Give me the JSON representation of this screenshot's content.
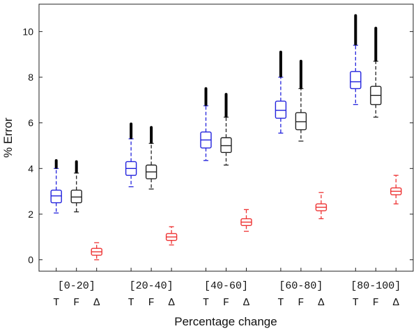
{
  "chart_data": {
    "type": "box",
    "xlabel": "Percentage change",
    "ylabel": "% Error",
    "ylim": [
      -0.5,
      11.2
    ],
    "yticks": [
      0,
      2,
      4,
      6,
      8,
      10
    ],
    "grid": false,
    "categories": [
      "[0-20]",
      "[20-40]",
      "[40-60]",
      "[60-80]",
      "[80-100]"
    ],
    "sub_labels": [
      "T",
      "F",
      "Δ"
    ],
    "series": [
      {
        "name": "T",
        "color": "#2222dd",
        "boxes": [
          {
            "whisker_low": 2.05,
            "q1": 2.5,
            "median": 2.8,
            "q3": 3.05,
            "whisker_high": 4.0,
            "outliers_high": [
              4.05,
              4.35
            ]
          },
          {
            "whisker_low": 3.2,
            "q1": 3.7,
            "median": 4.0,
            "q3": 4.3,
            "whisker_high": 5.3,
            "outliers_high": [
              5.35,
              5.95
            ]
          },
          {
            "whisker_low": 4.35,
            "q1": 4.9,
            "median": 5.25,
            "q3": 5.6,
            "whisker_high": 6.75,
            "outliers_high": [
              6.8,
              7.5
            ]
          },
          {
            "whisker_low": 5.55,
            "q1": 6.2,
            "median": 6.55,
            "q3": 6.95,
            "whisker_high": 8.0,
            "outliers_high": [
              8.05,
              9.1
            ]
          },
          {
            "whisker_low": 6.8,
            "q1": 7.5,
            "median": 7.8,
            "q3": 8.25,
            "whisker_high": 9.4,
            "outliers_high": [
              9.45,
              10.7
            ]
          }
        ]
      },
      {
        "name": "F",
        "color": "#222222",
        "boxes": [
          {
            "whisker_low": 2.1,
            "q1": 2.5,
            "median": 2.75,
            "q3": 3.05,
            "whisker_high": 3.8,
            "outliers_high": [
              3.85,
              4.3
            ]
          },
          {
            "whisker_low": 3.1,
            "q1": 3.55,
            "median": 3.85,
            "q3": 4.15,
            "whisker_high": 5.1,
            "outliers_high": [
              5.15,
              5.8
            ]
          },
          {
            "whisker_low": 4.15,
            "q1": 4.7,
            "median": 5.0,
            "q3": 5.35,
            "whisker_high": 6.25,
            "outliers_high": [
              6.3,
              7.25
            ]
          },
          {
            "whisker_low": 5.2,
            "q1": 5.7,
            "median": 6.05,
            "q3": 6.45,
            "whisker_high": 7.5,
            "outliers_high": [
              7.55,
              8.7
            ]
          },
          {
            "whisker_low": 6.25,
            "q1": 6.8,
            "median": 7.2,
            "q3": 7.6,
            "whisker_high": 8.7,
            "outliers_high": [
              8.75,
              10.15
            ]
          }
        ]
      },
      {
        "name": "Δ",
        "color": "#ee3333",
        "boxes": [
          {
            "whisker_low": 0.0,
            "q1": 0.2,
            "median": 0.35,
            "q3": 0.5,
            "whisker_high": 0.75,
            "outliers_high": []
          },
          {
            "whisker_low": 0.65,
            "q1": 0.85,
            "median": 1.0,
            "q3": 1.15,
            "whisker_high": 1.45,
            "outliers_high": []
          },
          {
            "whisker_low": 1.25,
            "q1": 1.5,
            "median": 1.65,
            "q3": 1.8,
            "whisker_high": 2.2,
            "outliers_high": []
          },
          {
            "whisker_low": 1.8,
            "q1": 2.15,
            "median": 2.3,
            "q3": 2.45,
            "whisker_high": 2.95,
            "outliers_high": []
          },
          {
            "whisker_low": 2.45,
            "q1": 2.85,
            "median": 3.0,
            "q3": 3.15,
            "whisker_high": 3.7,
            "outliers_high": []
          }
        ]
      }
    ]
  }
}
